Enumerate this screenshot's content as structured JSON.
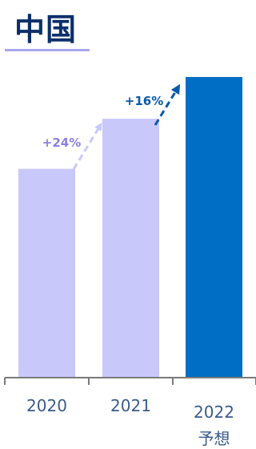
{
  "chart_data": {
    "type": "bar",
    "title": "中国",
    "categories": [
      "2020",
      "2021",
      "2022"
    ],
    "category_sublabels": [
      "",
      "",
      "予想"
    ],
    "values": [
      100,
      124,
      144
    ],
    "ylim": [
      0,
      150
    ],
    "grid": false,
    "legend": "none",
    "bar_colors": [
      "#c9c8fb",
      "#c9c8fb",
      "#006ec4"
    ],
    "annotations": [
      {
        "text": "+24%",
        "from": "2020",
        "to": "2021",
        "color": "#8a80e6"
      },
      {
        "text": "+16%",
        "from": "2021",
        "to": "2022",
        "color": "#0a5aa8"
      }
    ],
    "axis_color": "#7a7a7a"
  }
}
